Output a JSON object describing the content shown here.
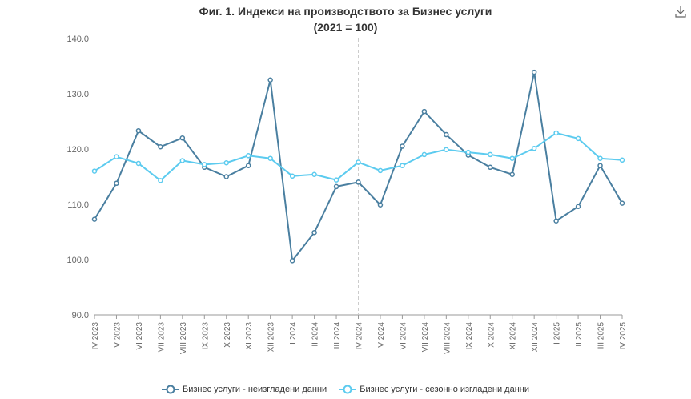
{
  "title_line1": "Фиг. 1. Индекси на производството за Бизнес услуги",
  "title_line2": "(2021 = 100)",
  "download_icon": "download-icon",
  "colors": {
    "series1": "#4a7fa0",
    "series2": "#5ccbef",
    "axis": "#999999",
    "grid_divider": "#cccccc",
    "text": "#666666"
  },
  "chart_data": {
    "type": "line",
    "title": "Фиг. 1. Индекси на производството за Бизнес услуги (2021 = 100)",
    "xlabel": "",
    "ylabel": "",
    "ylim": [
      90,
      140
    ],
    "yticks": [
      "90.0",
      "100.0",
      "110.0",
      "120.0",
      "130.0",
      "140.0"
    ],
    "categories": [
      "IV 2023",
      "V 2023",
      "VI 2023",
      "VII 2023",
      "VIII 2023",
      "IX 2023",
      "X 2023",
      "XI 2023",
      "XII 2023",
      "I 2024",
      "II 2024",
      "III 2024",
      "IV 2024",
      "V 2024",
      "VI 2024",
      "VII 2024",
      "VIII 2024",
      "IX 2024",
      "X 2024",
      "XI 2024",
      "XII 2024",
      "I 2025",
      "II 2025",
      "III 2025",
      "IV 2025"
    ],
    "divider_category": "IV 2024",
    "grid": false,
    "legend_position": "bottom",
    "series": [
      {
        "name": "Бизнес услуги - неизгладени данни",
        "values": [
          107.3,
          113.8,
          123.3,
          120.4,
          122.0,
          116.7,
          115.0,
          117.0,
          132.5,
          99.8,
          104.9,
          113.2,
          114.0,
          109.9,
          120.5,
          126.8,
          122.6,
          118.9,
          116.7,
          115.4,
          133.9,
          107.0,
          109.6,
          117.0,
          110.2
        ]
      },
      {
        "name": "Бизнес услуги - сезонно изгладени данни",
        "values": [
          116.0,
          118.6,
          117.4,
          114.3,
          117.9,
          117.2,
          117.5,
          118.8,
          118.3,
          115.1,
          115.4,
          114.4,
          117.6,
          116.1,
          117.0,
          119.0,
          119.9,
          119.4,
          119.0,
          118.3,
          120.1,
          122.9,
          121.9,
          118.3,
          118.0
        ]
      }
    ]
  }
}
